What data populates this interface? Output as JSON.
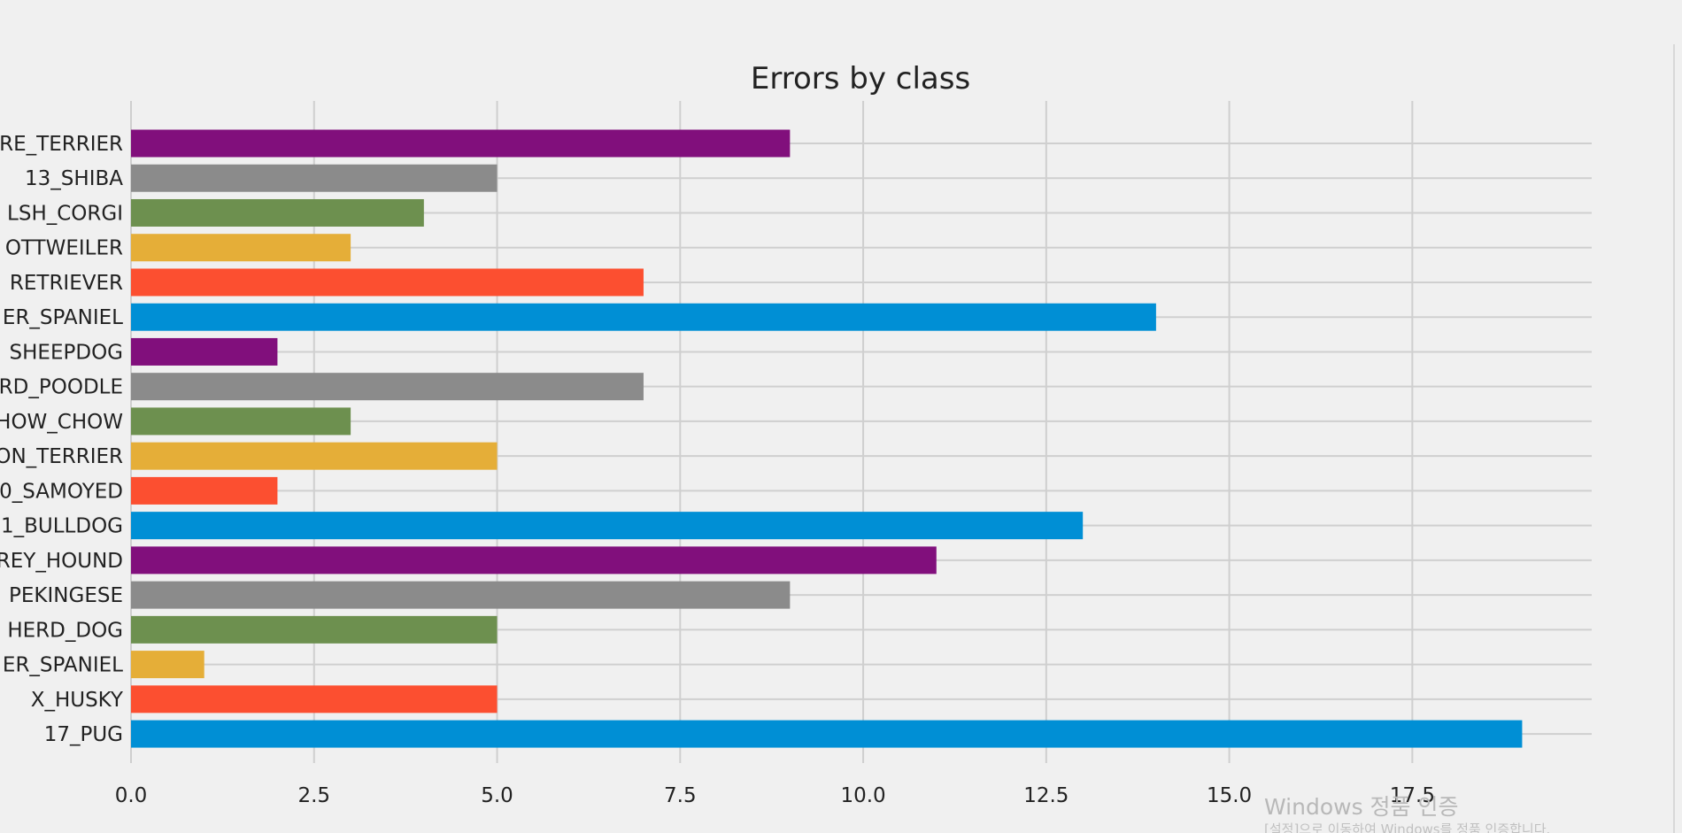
{
  "chart_data": {
    "type": "bar",
    "orientation": "horizontal",
    "title": "Errors by class",
    "xlabel": "",
    "ylabel": "",
    "categories": [
      "RE_TERRIER",
      "13_SHIBA",
      "LSH_CORGI",
      "OTTWEILER",
      "RETRIEVER",
      "ER_SPANIEL",
      "SHEEPDOG",
      "RD_POODLE",
      "HOW_CHOW",
      "ON_TERRIER",
      "0_SAMOYED",
      "1_BULLDOG",
      "REY_HOUND",
      "PEKINGESE",
      "HERD_DOG",
      "ER_SPANIEL",
      "X_HUSKY",
      "17_PUG"
    ],
    "values": [
      9,
      5,
      4,
      3,
      7,
      14,
      2,
      7,
      3,
      5,
      2,
      13,
      11,
      9,
      5,
      1,
      5,
      19
    ],
    "colors": [
      "#810f7c",
      "#8b8b8b",
      "#6d904f",
      "#e5ae38",
      "#fc4f30",
      "#008fd5",
      "#810f7c",
      "#8b8b8b",
      "#6d904f",
      "#e5ae38",
      "#fc4f30",
      "#008fd5",
      "#810f7c",
      "#8b8b8b",
      "#6d904f",
      "#e5ae38",
      "#fc4f30",
      "#008fd5"
    ],
    "xlim": [
      0,
      19.95
    ],
    "xticks": [
      0.0,
      2.5,
      5.0,
      7.5,
      10.0,
      12.5,
      15.0,
      17.5
    ],
    "xtick_labels": [
      "0.0",
      "2.5",
      "5.0",
      "7.5",
      "10.0",
      "12.5",
      "15.0",
      "17.5"
    ],
    "grid": true,
    "background": "#f0f0f0",
    "grid_color": "#cfcfcf"
  },
  "watermark": {
    "line1": "Windows 정품 인증",
    "line2": "[설정]으로 이동하여 Windows를 정품 인증합니다."
  }
}
